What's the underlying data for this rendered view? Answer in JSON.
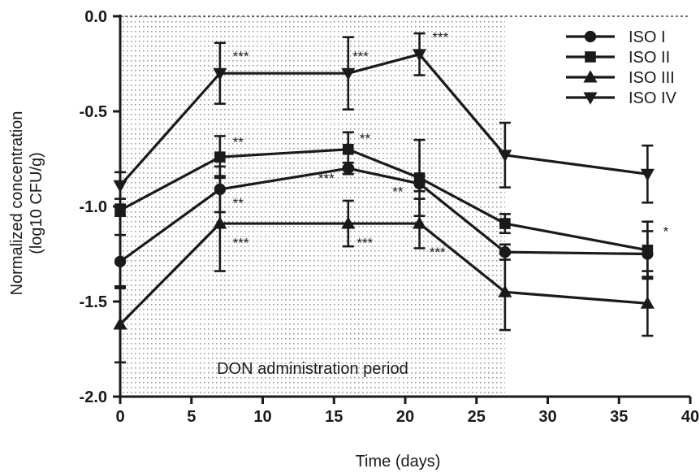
{
  "chart_data": {
    "type": "line",
    "xlabel": "Time (days)",
    "ylabel": [
      "Normalized concentration",
      "(log10 CFU/g)"
    ],
    "xlim": [
      0,
      40
    ],
    "ylim": [
      -2.0,
      0.0
    ],
    "xticks": [
      0,
      5,
      10,
      15,
      20,
      25,
      30,
      35,
      40
    ],
    "yticks": [
      0.0,
      -0.5,
      -1.0,
      -1.5,
      -2.0
    ],
    "ytick_labels": [
      "0.0",
      "-0.5",
      "-1.0",
      "-1.5",
      "-2.0"
    ],
    "reference_line_y": 0.0,
    "shaded_region": {
      "x": [
        0,
        27
      ],
      "label": "DON administration period"
    },
    "legend_position": "top-right",
    "series": [
      {
        "name": "ISO I",
        "marker": "circle",
        "x": [
          0,
          7,
          16,
          21,
          27,
          37
        ],
        "y": [
          -1.29,
          -0.91,
          -0.8,
          -0.88,
          -1.24,
          -1.25
        ],
        "err": [
          0.14,
          0.12,
          0.03,
          0.04,
          0.04,
          0.12
        ]
      },
      {
        "name": "ISO II",
        "marker": "square",
        "x": [
          0,
          7,
          16,
          21,
          27,
          37
        ],
        "y": [
          -1.02,
          -0.74,
          -0.7,
          -0.85,
          -1.09,
          -1.23
        ],
        "err": [
          0.03,
          0.11,
          0.09,
          0.2,
          0.05,
          0.15
        ]
      },
      {
        "name": "ISO III",
        "marker": "triangle-up",
        "x": [
          0,
          7,
          16,
          21,
          27,
          37
        ],
        "y": [
          -1.62,
          -1.09,
          -1.09,
          -1.09,
          -1.45,
          -1.51
        ],
        "err": [
          0.2,
          0.25,
          0.12,
          0.13,
          0.2,
          0.17
        ]
      },
      {
        "name": "ISO IV",
        "marker": "triangle-down",
        "x": [
          0,
          7,
          16,
          21,
          27,
          37
        ],
        "y": [
          -0.89,
          -0.3,
          -0.3,
          -0.2,
          -0.73,
          -0.83
        ],
        "err": [
          0.07,
          0.16,
          0.19,
          0.11,
          0.17,
          0.15
        ]
      }
    ],
    "annotations": [
      {
        "text": "***",
        "x": 7.9,
        "y": -0.21
      },
      {
        "text": "***",
        "x": 16.3,
        "y": -0.21
      },
      {
        "text": "***",
        "x": 21.9,
        "y": -0.11
      },
      {
        "text": "**",
        "x": 7.9,
        "y": -0.66
      },
      {
        "text": "**",
        "x": 16.8,
        "y": -0.64
      },
      {
        "text": "**",
        "x": 7.9,
        "y": -0.98
      },
      {
        "text": "***",
        "x": 13.9,
        "y": -0.85
      },
      {
        "text": "**",
        "x": 19.1,
        "y": -0.92
      },
      {
        "text": "***",
        "x": 7.9,
        "y": -1.19
      },
      {
        "text": "***",
        "x": 16.6,
        "y": -1.19
      },
      {
        "text": "***",
        "x": 21.7,
        "y": -1.24
      },
      {
        "text": "*",
        "x": 38.1,
        "y": -1.13
      }
    ]
  }
}
